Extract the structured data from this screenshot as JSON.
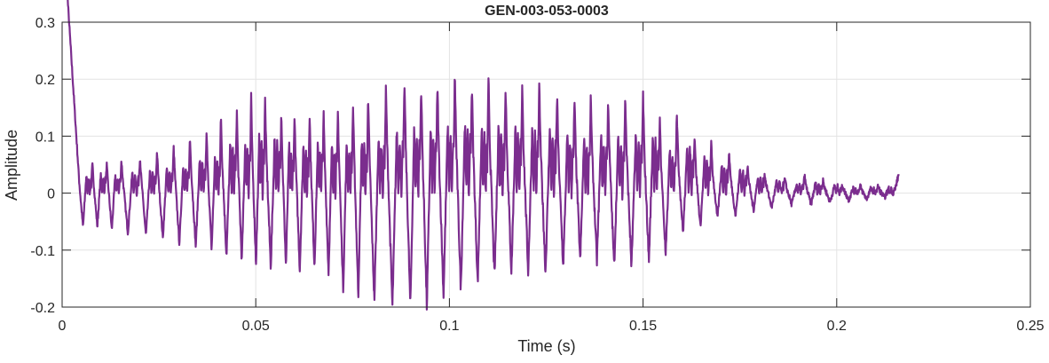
{
  "chart_data": {
    "type": "line",
    "title": "GEN-003-053-0003",
    "xlabel": "Time (s)",
    "ylabel": "Amplitude",
    "xlim": [
      0,
      0.25
    ],
    "ylim": [
      -0.2,
      0.3
    ],
    "xticks": [
      0,
      0.05,
      0.1,
      0.15,
      0.2,
      0.25
    ],
    "xtick_labels": [
      "0",
      "0.05",
      "0.1",
      "0.15",
      "0.2",
      "0.25"
    ],
    "yticks": [
      -0.2,
      -0.1,
      0,
      0.1,
      0.2,
      0.3
    ],
    "ytick_labels": [
      "-0.2",
      "-0.1",
      "0",
      "0.1",
      "0.2",
      "0.3"
    ],
    "grid": true,
    "line_color": "#7B2D8E",
    "signal_end_time": 0.216,
    "cycle_peaks": {
      "time": [
        0.0078,
        0.0115,
        0.0153,
        0.0201,
        0.0245,
        0.0288,
        0.033,
        0.0373,
        0.041,
        0.0451,
        0.0488,
        0.0524,
        0.0566,
        0.06,
        0.0639,
        0.0675,
        0.0712,
        0.0751,
        0.079,
        0.0836,
        0.0884,
        0.0927,
        0.0969,
        0.1014,
        0.1058,
        0.1101,
        0.1145,
        0.1188,
        0.1232,
        0.1278,
        0.1323,
        0.1365,
        0.141,
        0.1454,
        0.15,
        0.1543,
        0.1587,
        0.1633,
        0.1676,
        0.1722,
        0.177,
        0.1814,
        0.1866,
        0.1917,
        0.1965,
        0.2015,
        0.2061,
        0.2107
      ],
      "max": [
        0.053,
        0.052,
        0.058,
        0.063,
        0.073,
        0.08,
        0.098,
        0.106,
        0.142,
        0.147,
        0.169,
        0.164,
        0.145,
        0.138,
        0.141,
        0.142,
        0.142,
        0.156,
        0.164,
        0.181,
        0.191,
        0.188,
        0.191,
        0.211,
        0.192,
        0.202,
        0.194,
        0.194,
        0.188,
        0.172,
        0.167,
        0.17,
        0.164,
        0.172,
        0.173,
        0.131,
        0.147,
        0.103,
        0.087,
        0.072,
        0.047,
        0.034,
        0.025,
        0.031,
        0.022,
        0.013,
        0.013,
        0.013
      ],
      "min": [
        -0.06,
        -0.065,
        -0.07,
        -0.075,
        -0.08,
        -0.09,
        -0.095,
        -0.1,
        -0.11,
        -0.12,
        -0.125,
        -0.13,
        -0.13,
        -0.135,
        -0.13,
        -0.14,
        -0.17,
        -0.18,
        -0.19,
        -0.2,
        -0.2,
        -0.2,
        -0.18,
        -0.17,
        -0.16,
        -0.15,
        -0.14,
        -0.14,
        -0.14,
        -0.13,
        -0.12,
        -0.12,
        -0.13,
        -0.13,
        -0.12,
        -0.11,
        -0.07,
        -0.06,
        -0.045,
        -0.04,
        -0.03,
        -0.025,
        -0.02,
        -0.02,
        -0.015,
        -0.012,
        -0.01,
        -0.008
      ]
    }
  }
}
